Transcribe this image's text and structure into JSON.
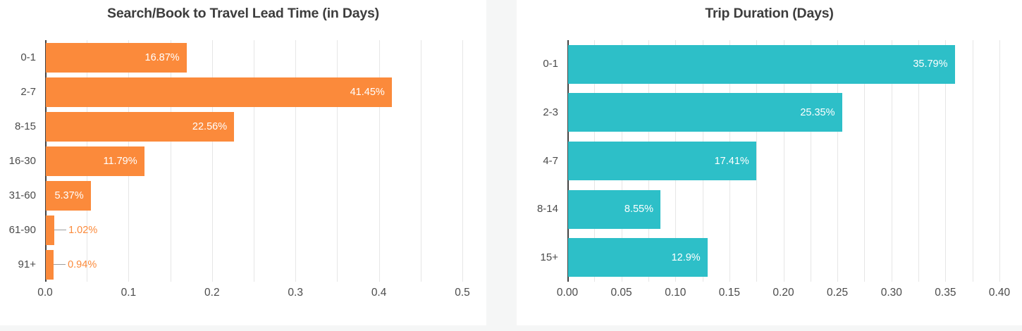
{
  "page": {
    "background_color": "#f5f6f6",
    "panel_color": "#ffffff"
  },
  "chart_data": [
    {
      "type": "bar",
      "orientation": "horizontal",
      "title": "Search/Book to Travel Lead Time (in Days)",
      "categories": [
        "0-1",
        "2-7",
        "8-15",
        "16-30",
        "31-60",
        "61-90",
        "91+"
      ],
      "values": [
        0.1687,
        0.4145,
        0.2256,
        0.1179,
        0.0537,
        0.0102,
        0.0094
      ],
      "value_labels": [
        "16.87%",
        "41.45%",
        "22.56%",
        "11.79%",
        "5.37%",
        "1.02%",
        "0.94%"
      ],
      "bar_color": "#fb8a3b",
      "xlim": [
        0,
        0.5
      ],
      "tick_values": [
        0,
        0.1,
        0.2,
        0.3,
        0.4,
        0.5
      ],
      "tick_labels": [
        "0.0",
        "0.1",
        "0.2",
        "0.3",
        "0.4",
        "0.5"
      ],
      "gridline_step": 0.05,
      "grid": true,
      "legend": "none"
    },
    {
      "type": "bar",
      "orientation": "horizontal",
      "title": "Trip Duration (Days)",
      "categories": [
        "0-1",
        "2-3",
        "4-7",
        "8-14",
        "15+"
      ],
      "values": [
        0.3579,
        0.2535,
        0.1741,
        0.0855,
        0.129
      ],
      "value_labels": [
        "35.79%",
        "25.35%",
        "17.41%",
        "8.55%",
        "12.9%"
      ],
      "bar_color": "#2dbfc8",
      "xlim": [
        0,
        0.4
      ],
      "tick_values": [
        0,
        0.05,
        0.1,
        0.15,
        0.2,
        0.25,
        0.3,
        0.35,
        0.4
      ],
      "tick_labels": [
        "0.00",
        "0.05",
        "0.10",
        "0.15",
        "0.20",
        "0.25",
        "0.30",
        "0.35",
        "0.40"
      ],
      "gridline_step": 0.025,
      "grid": true,
      "legend": "none"
    }
  ]
}
